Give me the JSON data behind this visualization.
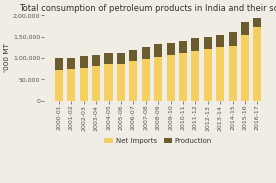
{
  "title": "Total consumption of petroleum products in India and their source",
  "ylabel": "'000 MT",
  "categories": [
    "2000-01",
    "2001-02",
    "2002-03",
    "2003-04",
    "2004-05",
    "2005-06",
    "2006-07",
    "2007-08",
    "2008-09",
    "2009-10",
    "2010-11",
    "2011-12",
    "2012-13",
    "2013-14",
    "2014-15",
    "2015-16",
    "2016-17"
  ],
  "net_imports": [
    72000,
    73000,
    77000,
    82000,
    85000,
    86000,
    92000,
    98000,
    103000,
    108000,
    111000,
    116000,
    122000,
    126000,
    128000,
    155000,
    172000
  ],
  "production": [
    27000,
    27000,
    27000,
    25000,
    26000,
    26000,
    27000,
    28000,
    29000,
    28000,
    28000,
    30000,
    26000,
    29000,
    32000,
    30000,
    22000
  ],
  "net_imports_color": "#F5D060",
  "production_color": "#6B5B2E",
  "background_color": "#F0EDE4",
  "ylim": [
    0,
    200000
  ],
  "yticks": [
    0,
    50000,
    100000,
    150000,
    200000
  ],
  "ytick_labels": [
    "0",
    "50,000",
    "1,00,000",
    "1,50,000",
    "2,00,000"
  ],
  "title_fontsize": 6.0,
  "axis_fontsize": 5.2,
  "tick_fontsize": 4.5,
  "legend_fontsize": 5.0
}
